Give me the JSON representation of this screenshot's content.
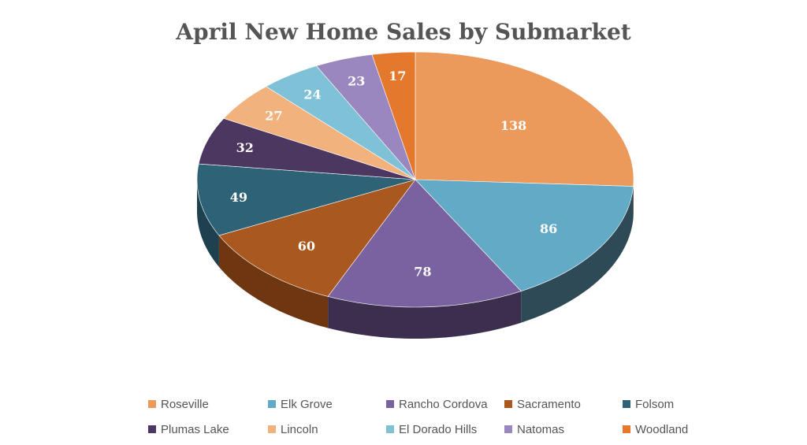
{
  "chart_data": {
    "type": "pie",
    "title": "April New Home Sales by Submarket",
    "categories": [
      "Roseville",
      "Elk Grove",
      "Rancho Cordova",
      "Sacramento",
      "Folsom",
      "Plumas Lake",
      "Lincoln",
      "El Dorado Hills",
      "Natomas",
      "Woodland"
    ],
    "values": [
      138,
      86,
      78,
      60,
      49,
      32,
      27,
      24,
      23,
      17
    ],
    "colors": [
      "#EB9A5B",
      "#63AAC6",
      "#7A62A0",
      "#A9581F",
      "#2E6276",
      "#4C3760",
      "#F2B27E",
      "#7FC1D6",
      "#9A87BF",
      "#E4792E"
    ],
    "side_colors": [
      "#A86A3B",
      "#2E4A57",
      "#3C2F4E",
      "#6E3712",
      "#1F404E",
      "#2E213C",
      "#B37C54",
      "#4F8596",
      "#655880",
      "#A1531C"
    ],
    "legend_position": "bottom",
    "data_labels": true,
    "style": "3d"
  }
}
